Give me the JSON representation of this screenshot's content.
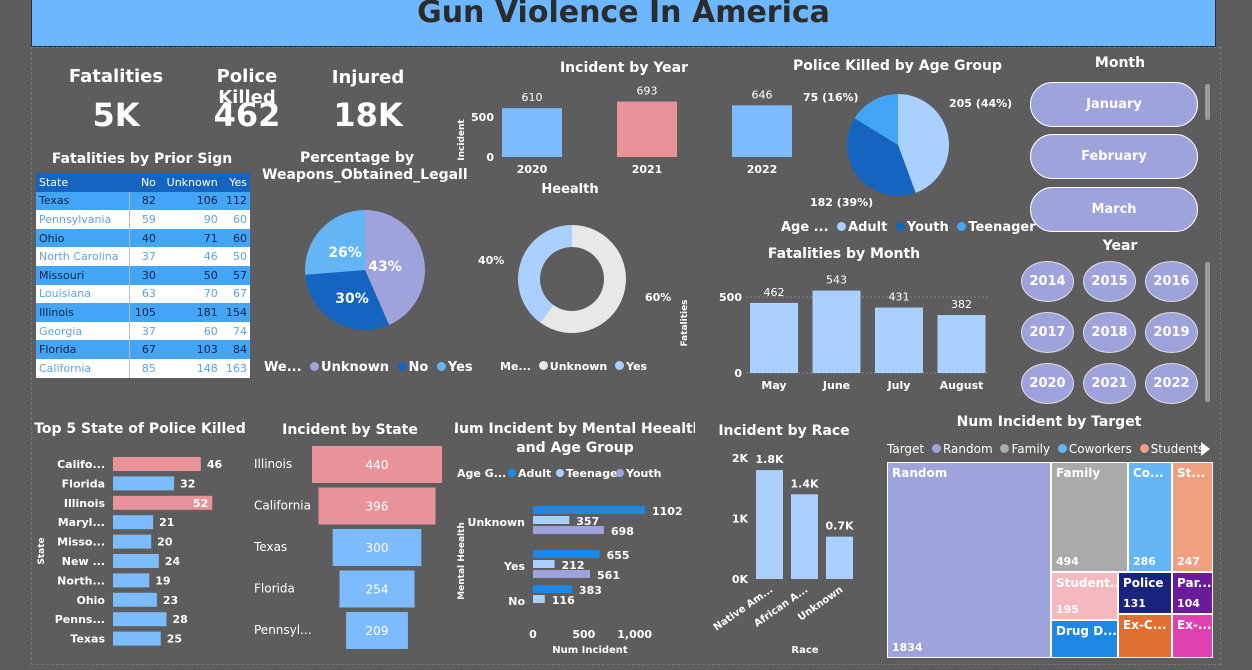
{
  "title": "Gun Violence In America",
  "kpis": [
    {
      "label": "Fatalities",
      "value": "5K"
    },
    {
      "label": "Police Killed",
      "value": "462"
    },
    {
      "label": "Injured",
      "value": "18K"
    }
  ],
  "prior_sign": {
    "title": "Fatalities by Prior Sign",
    "columns": [
      "State",
      "No",
      "Unknown",
      "Yes"
    ],
    "rows": [
      [
        "Texas",
        "82",
        "106",
        "112"
      ],
      [
        "Pennsylvania",
        "59",
        "90",
        "60"
      ],
      [
        "Ohio",
        "40",
        "71",
        "60"
      ],
      [
        "North Carolina",
        "37",
        "46",
        "50"
      ],
      [
        "Missouri",
        "30",
        "50",
        "57"
      ],
      [
        "Louisiana",
        "63",
        "70",
        "67"
      ],
      [
        "Illinois",
        "105",
        "181",
        "154"
      ],
      [
        "Georgia",
        "37",
        "60",
        "74"
      ],
      [
        "Florida",
        "67",
        "103",
        "84"
      ],
      [
        "California",
        "85",
        "148",
        "163"
      ]
    ]
  },
  "weapons": {
    "title": "Percentage by Weapons_Obtained_Legall",
    "legend_title": "We...",
    "legend": [
      "Unknown",
      "No",
      "Yes"
    ],
    "labels": [
      "43%",
      "30%",
      "26%"
    ]
  },
  "health": {
    "title": "Heealth",
    "legend_title": "Me...",
    "legend": [
      "Unknown",
      "Yes"
    ],
    "labels": [
      "60%",
      "40%"
    ]
  },
  "month_slicer": {
    "title": "Month",
    "items": [
      "January",
      "February",
      "March"
    ]
  },
  "year_slicer": {
    "title": "Year",
    "items": [
      "2014",
      "2015",
      "2016",
      "2017",
      "2018",
      "2019",
      "2020",
      "2021",
      "2022"
    ]
  },
  "police_age": {
    "title": "Police Killed by Age Group",
    "labels": [
      "205 (44%)",
      "182 (39%)",
      "75 (16%)"
    ],
    "legend_title": "Age ...",
    "legend": [
      "Adult",
      "Youth",
      "Teenager"
    ]
  },
  "treemap": {
    "title": "Num Incident by Target",
    "legend_title": "Target",
    "legend": [
      "Random",
      "Family",
      "Coworkers",
      "Students"
    ],
    "cells": [
      {
        "name": "Random",
        "value": "1834"
      },
      {
        "name": "Family",
        "value": "494"
      },
      {
        "name": "Co...",
        "value": "286"
      },
      {
        "name": "St...",
        "value": "247"
      },
      {
        "name": "Student...",
        "value": "195"
      },
      {
        "name": "Police",
        "value": "131"
      },
      {
        "name": "Par...",
        "value": "104"
      },
      {
        "name": "Drug D...",
        "value": ""
      },
      {
        "name": "Ex-C...",
        "value": ""
      },
      {
        "name": "Ex-...",
        "value": ""
      }
    ]
  },
  "chart_data": [
    {
      "type": "bar",
      "title": "Incident by Year",
      "ylabel": "Incident",
      "categories": [
        "2020",
        "2021",
        "2022"
      ],
      "values": [
        610,
        693,
        646
      ],
      "ylim": [
        0,
        700
      ],
      "yticks": [
        "0",
        "500"
      ]
    },
    {
      "type": "bar",
      "title": "Fatalities by Month",
      "ylabel": "Fatalities",
      "categories": [
        "May",
        "June",
        "July",
        "August"
      ],
      "values": [
        462,
        543,
        431,
        382
      ],
      "ylim": [
        0,
        560
      ],
      "yticks": [
        "0",
        "500"
      ]
    },
    {
      "type": "bar",
      "title": "Incident by Race",
      "xlabel": "Race",
      "categories": [
        "Native Am...",
        "African A...",
        "Unknown"
      ],
      "values": [
        1800,
        1400,
        700
      ],
      "value_labels": [
        "1.8K",
        "1.4K",
        "0.7K"
      ],
      "ylim": [
        0,
        2000
      ],
      "yticks": [
        "0K",
        "1K",
        "2K"
      ]
    },
    {
      "type": "bar",
      "title": "Top 5 State of Police Killed",
      "ylabel": "State",
      "orientation": "horizontal",
      "categories": [
        "Califo...",
        "Florida",
        "Illinois",
        "Maryl...",
        "Misso...",
        "New ...",
        "North...",
        "Ohio",
        "Penns...",
        "Texas"
      ],
      "values": [
        46,
        32,
        52,
        21,
        20,
        24,
        19,
        23,
        28,
        25
      ]
    },
    {
      "type": "bar",
      "title": "Incident by State",
      "orientation": "funnel",
      "categories": [
        "Illinois",
        "California",
        "Texas",
        "Florida",
        "Pennsyl..."
      ],
      "values": [
        440,
        396,
        300,
        254,
        209
      ]
    },
    {
      "type": "bar",
      "title": "Num Incident by Mental Heealth and Age Group",
      "orientation": "horizontal",
      "xlabel": "Num Incident",
      "ylabel": "Mental Heealth",
      "legend_title": "Age G...",
      "categories": [
        "Unknown",
        "Yes",
        "No"
      ],
      "series": [
        {
          "name": "Adult",
          "values": [
            1102,
            655,
            383
          ]
        },
        {
          "name": "Teenager",
          "values": [
            357,
            212,
            116
          ]
        },
        {
          "name": "Youth",
          "values": [
            698,
            561,
            null
          ]
        }
      ],
      "xticks": [
        "0",
        "500",
        "1,000"
      ]
    },
    {
      "type": "pie",
      "title": "Percentage by Weapons_Obtained_Legall",
      "categories": [
        "Unknown",
        "No",
        "Yes"
      ],
      "values": [
        43,
        30,
        26
      ]
    },
    {
      "type": "pie",
      "title": "Heealth",
      "donut": true,
      "categories": [
        "Unknown",
        "Yes"
      ],
      "values": [
        60,
        40
      ]
    },
    {
      "type": "pie",
      "title": "Police Killed by Age Group",
      "categories": [
        "Adult",
        "Youth",
        "Teenager"
      ],
      "values": [
        205,
        182,
        75
      ]
    }
  ],
  "colors": {
    "blue": "#7dbbff",
    "pink": "#e8929a",
    "dark": "#1565c0",
    "lav": "#9fa3dc",
    "light": "#a9d0ff"
  }
}
